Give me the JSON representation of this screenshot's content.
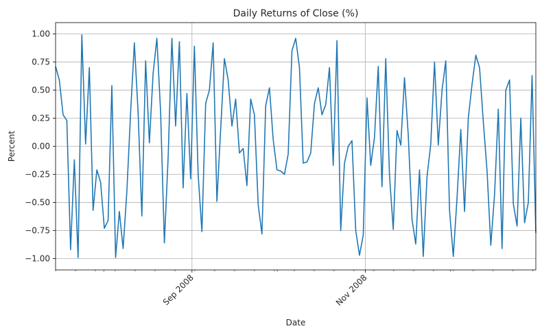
{
  "chart_data": {
    "type": "line",
    "title": "Daily Returns of Close (%)",
    "xlabel": "Date",
    "ylabel": "Percent",
    "x_start": "2008-07-15",
    "x_end": "2008-12-31",
    "x_major_ticks": [
      {
        "date": "2008-09-01",
        "label": "Sep 2008"
      },
      {
        "date": "2008-11-01",
        "label": "Nov 2008"
      }
    ],
    "x_minor_ticks": [
      "2008-08-01",
      "2008-10-01",
      "2008-12-01"
    ],
    "ylim": [
      -1.1,
      1.1
    ],
    "y_ticks": [
      {
        "value": 1.0,
        "label": "1.00"
      },
      {
        "value": 0.75,
        "label": "0.75"
      },
      {
        "value": 0.5,
        "label": "0.50"
      },
      {
        "value": 0.25,
        "label": "0.25"
      },
      {
        "value": 0.0,
        "label": "0.00"
      },
      {
        "value": -0.25,
        "label": "−0.25"
      },
      {
        "value": -0.5,
        "label": "−0.50"
      },
      {
        "value": -0.75,
        "label": "−0.75"
      },
      {
        "value": -1.0,
        "label": "−1.00"
      }
    ],
    "grid": true,
    "line_color": "#1f77b4",
    "series": [
      {
        "values": [
          0.71,
          0.59,
          0.28,
          0.23,
          -0.92,
          -0.12,
          -0.99,
          0.99,
          0.02,
          0.7,
          -0.57,
          -0.21,
          -0.32,
          -0.73,
          -0.66,
          0.54,
          -0.99,
          -0.58,
          -0.91,
          -0.4,
          0.3,
          0.92,
          0.3,
          -0.62,
          0.76,
          0.03,
          0.65,
          0.96,
          0.3,
          -0.86,
          -0.1,
          0.96,
          0.18,
          0.93,
          -0.37,
          0.47,
          -0.29,
          0.89,
          -0.25,
          -0.76,
          0.38,
          0.5,
          0.92,
          -0.49,
          0.15,
          0.78,
          0.59,
          0.18,
          0.42,
          -0.06,
          -0.02,
          -0.35,
          0.42,
          0.28,
          -0.52,
          -0.78,
          0.36,
          0.52,
          0.06,
          -0.21,
          -0.22,
          -0.25,
          -0.07,
          0.85,
          0.96,
          0.7,
          -0.15,
          -0.14,
          -0.06,
          0.38,
          0.52,
          0.28,
          0.37,
          0.7,
          -0.17,
          0.94,
          -0.75,
          -0.15,
          0.0,
          0.05,
          -0.75,
          -0.97,
          -0.79,
          0.43,
          -0.17,
          0.08,
          0.71,
          -0.36,
          0.78,
          -0.26,
          -0.74,
          0.14,
          0.01,
          0.61,
          0.1,
          -0.65,
          -0.87,
          -0.21,
          -0.98,
          -0.27,
          0.02,
          0.75,
          0.01,
          0.5,
          0.76,
          -0.57,
          -0.98,
          -0.46,
          0.15,
          -0.58,
          0.25,
          0.55,
          0.81,
          0.7,
          0.22,
          -0.22,
          -0.88,
          -0.43,
          0.33,
          -0.91,
          0.5,
          0.59,
          -0.51,
          -0.71,
          0.25,
          -0.68,
          -0.5,
          0.63,
          -0.77
        ]
      }
    ]
  }
}
